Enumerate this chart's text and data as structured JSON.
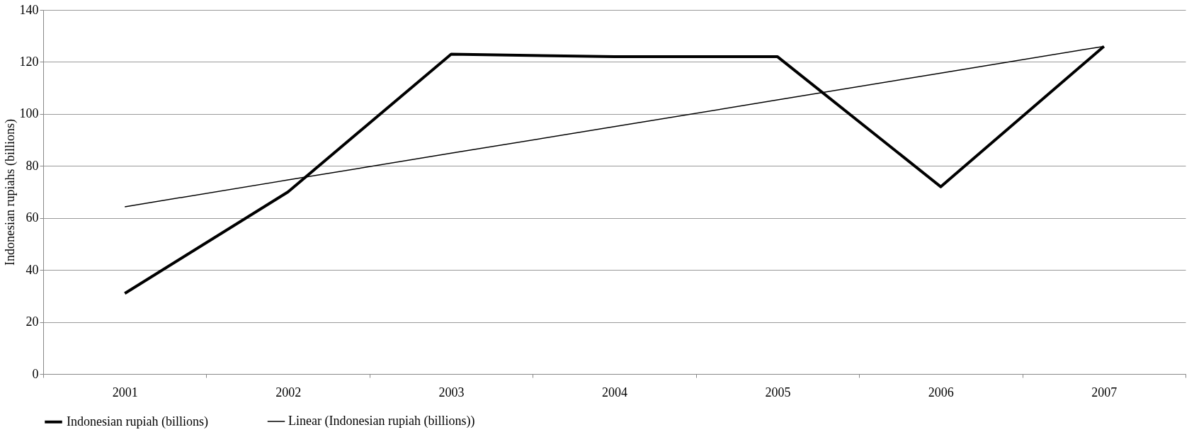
{
  "chart_data": {
    "type": "line",
    "ylabel": "Indonesian rupiahs (billions)",
    "categories": [
      "2001",
      "2002",
      "2003",
      "2004",
      "2005",
      "2006",
      "2007"
    ],
    "series": [
      {
        "name": "Indonesian rupiah (billions)",
        "color": "#000000",
        "values": [
          31,
          70,
          123,
          122,
          122,
          72,
          126
        ]
      },
      {
        "name": "Linear (Indonesian rupiah (billions))",
        "color": "#000000",
        "values": [
          64.3,
          74.6,
          84.9,
          95.1,
          105.4,
          115.7,
          126
        ]
      }
    ],
    "ylim": [
      0,
      140
    ],
    "yticks": [
      0,
      20,
      40,
      60,
      80,
      100,
      120,
      140
    ],
    "grid": "y",
    "legend": "bottom",
    "marker": "none",
    "line_style": "solid"
  }
}
